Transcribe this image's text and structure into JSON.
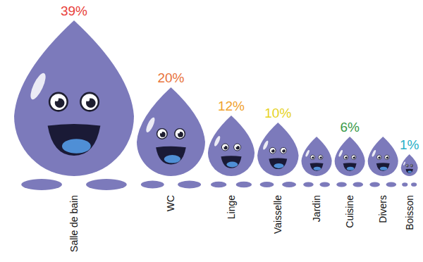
{
  "chart_data": {
    "type": "pictogram",
    "categories": [
      "Salle de bain",
      "WC",
      "Linge",
      "Vaisselle",
      "Jardin",
      "Cuisine",
      "Divers",
      "Boisson"
    ],
    "values": [
      39,
      20,
      12,
      10,
      6,
      6,
      6,
      1
    ],
    "value_labels": [
      "39%",
      "20%",
      "12%",
      "10%",
      null,
      "6%",
      null,
      "1%"
    ],
    "color": "#7c7abb",
    "data_labels": true
  }
}
